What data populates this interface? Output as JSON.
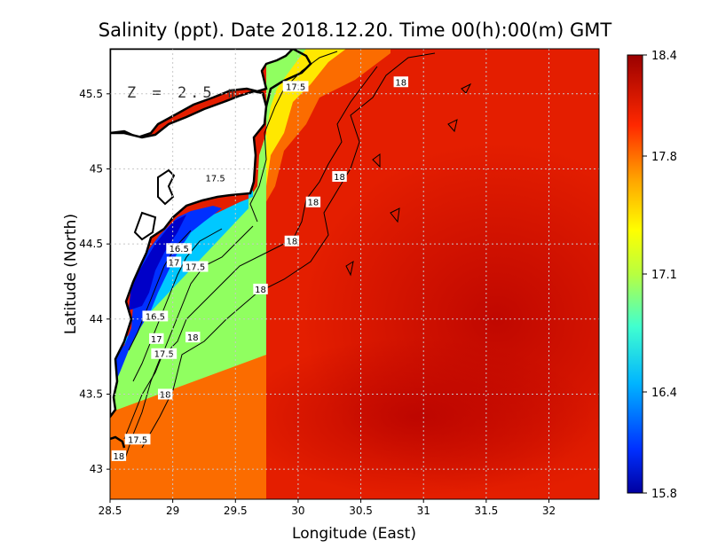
{
  "chart_data": {
    "type": "heatmap",
    "title": "Salinity (ppt). Date 2018.12.20. Time 00(h):00(m) GMT",
    "xlabel": "Longitude (East)",
    "ylabel": "Latitude (North)",
    "depth_label": "Z = 2.5 m",
    "xlim": [
      28.5,
      32.4
    ],
    "ylim": [
      42.8,
      45.8
    ],
    "x_ticks": [
      28.5,
      29,
      29.5,
      30,
      30.5,
      31,
      31.5,
      32
    ],
    "x_tick_labels": [
      "28.5",
      "29",
      "29.5",
      "30",
      "30.5",
      "31",
      "31.5",
      "32"
    ],
    "y_ticks": [
      43,
      43.5,
      44,
      44.5,
      45,
      45.5
    ],
    "y_tick_labels": [
      "43",
      "43.5",
      "44",
      "44.5",
      "45",
      "45.5"
    ],
    "grid": true,
    "colorbar": {
      "min": 15.8,
      "max": 18.4,
      "ticks": [
        18.4,
        17.8,
        17.1,
        16.4,
        15.8
      ],
      "tick_labels": [
        "18.4",
        "17.8",
        "17.1",
        "16.4",
        "15.8"
      ]
    },
    "contour_labels": [
      {
        "text": "17.5",
        "lon": 29.98,
        "lat": 45.55
      },
      {
        "text": "18",
        "lon": 30.82,
        "lat": 45.58
      },
      {
        "text": "17.5",
        "lon": 29.34,
        "lat": 44.94
      },
      {
        "text": "18",
        "lon": 30.33,
        "lat": 44.95
      },
      {
        "text": "18",
        "lon": 30.12,
        "lat": 44.78
      },
      {
        "text": "18",
        "lon": 29.95,
        "lat": 44.52
      },
      {
        "text": "16.5",
        "lon": 29.05,
        "lat": 44.47
      },
      {
        "text": "17",
        "lon": 29.01,
        "lat": 44.38
      },
      {
        "text": "17.5",
        "lon": 29.18,
        "lat": 44.35
      },
      {
        "text": "18",
        "lon": 29.7,
        "lat": 44.2
      },
      {
        "text": "16.5",
        "lon": 28.86,
        "lat": 44.02
      },
      {
        "text": "17",
        "lon": 28.87,
        "lat": 43.87
      },
      {
        "text": "18",
        "lon": 29.16,
        "lat": 43.88
      },
      {
        "text": "17.5",
        "lon": 28.93,
        "lat": 43.77
      },
      {
        "text": "18",
        "lon": 28.94,
        "lat": 43.5
      },
      {
        "text": "17.5",
        "lon": 28.72,
        "lat": 43.2
      },
      {
        "text": "18",
        "lon": 28.57,
        "lat": 43.09
      }
    ]
  }
}
